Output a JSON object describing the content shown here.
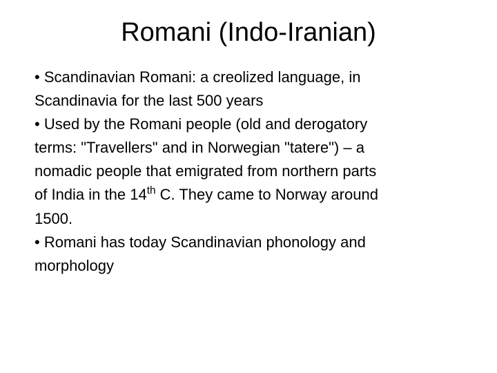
{
  "slide": {
    "title": "Romani (Indo-Iranian)",
    "title_fontsize": 38,
    "body_fontsize": 22,
    "background_color": "#ffffff",
    "text_color": "#000000",
    "lines": [
      "• Scandinavian Romani: a creolized language, in",
      "Scandinavia for the last 500 years",
      "• Used by the Romani people (old and derogatory",
      "terms: \"Travellers\" and in Norwegian \"tatere\") – a",
      "nomadic people that emigrated from northern parts",
      "of India in the 14",
      " C. They came to Norway around",
      "1500.",
      "• Romani has today Scandinavian phonology and",
      "morphology"
    ],
    "superscript_after_line_index": 5,
    "superscript_text": "th"
  }
}
